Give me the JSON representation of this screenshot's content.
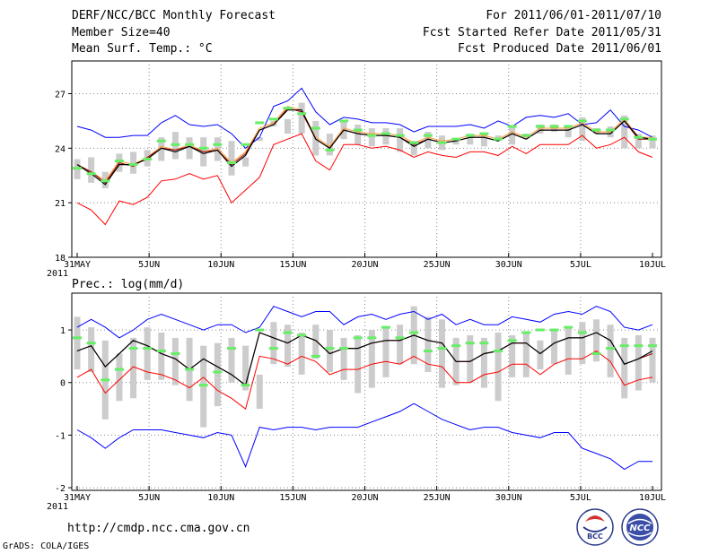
{
  "header": {
    "title": "DERF/NCC/BCC Monthly Forecast",
    "member_size": "Member Size=40",
    "variable": "Mean Surf. Temp.: °C",
    "period": "For 2011/06/01-2011/07/10",
    "refer_date": "Fcst Started Refer Date 2011/05/31",
    "produced_date": "Fcst Produced Date 2011/06/01"
  },
  "footer": {
    "url": "http://cmdp.ncc.cma.gov.cn",
    "grads": "GrADS: COLA/IGES",
    "logo_left_text": "BCC",
    "logo_right_text": "NCC"
  },
  "colors": {
    "upper": "#0000ff",
    "lower": "#ff0000",
    "mean": "#000000",
    "box": "#cccccc",
    "obs": "#66ee66",
    "grid": "#888888"
  },
  "chart_data": [
    {
      "type": "line",
      "title": "",
      "ylabel": "Mean Surf. Temp.: °C",
      "ylim": [
        18,
        28.8
      ],
      "yticks": [
        18,
        21,
        24,
        27
      ],
      "x_days": 40,
      "x_tick_days": [
        0,
        5,
        10,
        15,
        20,
        25,
        30,
        35,
        40
      ],
      "x_tick_labels": [
        "31MAY",
        "5JUN",
        "10JUN",
        "15JUN",
        "20JUN",
        "25JUN",
        "30JUN",
        "5JUL",
        "10JUL"
      ],
      "x_start_year": "2011",
      "series": [
        {
          "name": "upper",
          "values": [
            25.2,
            25.0,
            24.6,
            24.6,
            24.7,
            24.7,
            25.4,
            25.8,
            25.3,
            25.2,
            25.3,
            24.8,
            24.0,
            24.6,
            26.3,
            26.6,
            27.3,
            26.0,
            25.3,
            25.7,
            25.6,
            25.4,
            25.4,
            25.3,
            24.9,
            25.2,
            25.2,
            25.2,
            25.3,
            25.1,
            25.5,
            25.2,
            25.7,
            25.8,
            25.7,
            25.9,
            25.3,
            25.4,
            26.1,
            25.2,
            25.0,
            24.6
          ]
        },
        {
          "name": "box_top",
          "values": [
            23.4,
            23.5,
            22.7,
            23.7,
            23.8,
            23.9,
            24.6,
            24.9,
            24.6,
            24.6,
            24.6,
            24.4,
            23.5,
            24.6,
            25.5,
            25.6,
            26.5,
            25.5,
            24.8,
            25.5,
            25.3,
            25.1,
            25.1,
            25.1,
            24.4,
            24.9,
            24.7,
            24.5,
            24.8,
            24.8,
            24.7,
            25.2,
            24.8,
            25.3,
            25.3,
            25.2,
            25.7,
            25.1,
            25.2,
            25.8,
            24.8,
            24.7
          ]
        },
        {
          "name": "box_bottom",
          "values": [
            22.3,
            22.1,
            21.8,
            22.7,
            22.6,
            23.0,
            23.3,
            23.4,
            23.4,
            23.0,
            23.3,
            22.5,
            23.0,
            24.4,
            25.2,
            24.8,
            24.8,
            23.6,
            23.6,
            24.5,
            24.2,
            24.1,
            24.2,
            23.8,
            23.6,
            24.0,
            23.9,
            24.2,
            24.2,
            24.1,
            24.5,
            24.2,
            24.6,
            24.8,
            24.9,
            24.6,
            24.4,
            24.8,
            24.6,
            24.0,
            24.0,
            24.0
          ]
        },
        {
          "name": "mean_black",
          "values": [
            23.1,
            22.6,
            22.0,
            23.1,
            23.1,
            23.4,
            24.0,
            23.8,
            24.1,
            23.7,
            23.9,
            23.0,
            23.6,
            25.0,
            25.3,
            26.1,
            26.1,
            24.5,
            24.0,
            25.0,
            24.8,
            24.7,
            24.7,
            24.6,
            24.1,
            24.5,
            24.3,
            24.4,
            24.6,
            24.6,
            24.4,
            24.8,
            24.5,
            25.0,
            25.0,
            25.0,
            25.3,
            24.8,
            24.8,
            25.5,
            24.6,
            24.5
          ]
        },
        {
          "name": "mean_darkred",
          "values": [
            23.1,
            22.7,
            22.1,
            23.2,
            23.0,
            23.5,
            24.0,
            23.9,
            24.1,
            23.8,
            23.9,
            23.1,
            23.7,
            25.0,
            25.3,
            26.2,
            26.0,
            24.5,
            24.0,
            25.0,
            24.8,
            24.7,
            24.7,
            24.6,
            24.2,
            24.5,
            24.3,
            24.4,
            24.6,
            24.6,
            24.4,
            24.8,
            24.5,
            25.0,
            25.0,
            25.0,
            25.3,
            24.8,
            24.8,
            25.5,
            24.5,
            24.5
          ]
        },
        {
          "name": "lower",
          "values": [
            21.0,
            20.6,
            19.8,
            21.1,
            20.9,
            21.3,
            22.2,
            22.3,
            22.6,
            22.3,
            22.5,
            21.0,
            21.7,
            22.4,
            24.2,
            24.5,
            24.8,
            23.3,
            22.8,
            24.2,
            24.2,
            24.0,
            24.1,
            23.9,
            23.5,
            23.8,
            23.6,
            23.5,
            23.8,
            23.8,
            23.6,
            24.1,
            23.7,
            24.2,
            24.2,
            24.2,
            24.7,
            24.0,
            24.2,
            24.6,
            23.8,
            23.5
          ]
        },
        {
          "name": "mean_orange_outline",
          "values": [
            23.1,
            22.7,
            22.2,
            23.3,
            23.1,
            23.5,
            24.1,
            23.9,
            24.2,
            23.8,
            24.0,
            23.2,
            23.8,
            25.1,
            25.4,
            26.3,
            26.1,
            24.6,
            24.1,
            25.1,
            24.9,
            24.8,
            24.8,
            24.7,
            24.3,
            24.6,
            24.4,
            24.5,
            24.7,
            24.7,
            24.5,
            24.9,
            24.6,
            25.1,
            25.1,
            25.1,
            25.4,
            24.9,
            24.9,
            25.6,
            24.6,
            24.6
          ]
        },
        {
          "name": "obs_green",
          "values": [
            22.9,
            22.6,
            22.2,
            23.3,
            23.1,
            23.4,
            24.4,
            24.2,
            24.2,
            24.0,
            24.2,
            23.2,
            24.2,
            25.4,
            25.6,
            26.2,
            25.9,
            25.1,
            23.9,
            25.5,
            25.0,
            24.7,
            24.8,
            24.7,
            24.3,
            24.7,
            24.3,
            24.5,
            24.7,
            24.8,
            24.5,
            25.2,
            24.7,
            25.2,
            25.2,
            25.2,
            25.5,
            25.0,
            25.0,
            25.6,
            24.6,
            24.5
          ]
        }
      ]
    },
    {
      "type": "line",
      "title": "Prec.: log(mm/d)",
      "ylim": [
        -2.05,
        1.7
      ],
      "yticks": [
        -2,
        -1,
        0,
        1
      ],
      "x_days": 40,
      "x_tick_days": [
        0,
        5,
        10,
        15,
        20,
        25,
        30,
        35,
        40
      ],
      "x_tick_labels": [
        "31MAY",
        "5JUN",
        "10JUN",
        "15JUN",
        "20JUN",
        "25JUN",
        "30JUN",
        "5JUL",
        "10JUL"
      ],
      "x_start_year": "2011",
      "series": [
        {
          "name": "upper",
          "values": [
            1.05,
            1.2,
            1.05,
            0.85,
            1.0,
            1.2,
            1.3,
            1.2,
            1.1,
            1.0,
            1.1,
            1.1,
            0.95,
            1.05,
            1.45,
            1.35,
            1.25,
            1.35,
            1.35,
            1.1,
            1.25,
            1.3,
            1.2,
            1.3,
            1.35,
            1.2,
            1.3,
            1.1,
            1.2,
            1.1,
            1.1,
            1.25,
            1.2,
            1.15,
            1.3,
            1.35,
            1.3,
            1.45,
            1.35,
            1.05,
            1.0,
            1.1
          ]
        },
        {
          "name": "box_top",
          "values": [
            1.25,
            1.05,
            0.8,
            0.55,
            0.85,
            1.05,
            0.95,
            0.85,
            0.85,
            0.7,
            0.75,
            0.85,
            0.7,
            0.15,
            1.15,
            1.1,
            0.95,
            1.1,
            1.0,
            0.85,
            0.9,
            1.0,
            1.05,
            1.1,
            1.45,
            1.25,
            1.2,
            0.85,
            0.9,
            0.85,
            0.95,
            0.9,
            0.95,
            0.8,
            1.0,
            1.05,
            1.15,
            1.2,
            1.1,
            0.85,
            0.9,
            0.85
          ]
        },
        {
          "name": "box_bottom",
          "values": [
            0.25,
            0.2,
            -0.7,
            -0.35,
            -0.3,
            0.05,
            0.05,
            -0.05,
            -0.35,
            -0.85,
            -0.45,
            0.0,
            -0.15,
            -0.5,
            0.35,
            0.3,
            0.15,
            0.45,
            0.2,
            0.05,
            -0.2,
            -0.1,
            0.1,
            0.35,
            0.35,
            0.2,
            -0.1,
            -0.05,
            0.0,
            -0.1,
            -0.35,
            0.1,
            0.1,
            0.25,
            0.35,
            0.15,
            0.35,
            0.4,
            0.1,
            -0.3,
            -0.15,
            0.0
          ]
        },
        {
          "name": "mean_black",
          "values": [
            0.6,
            0.7,
            0.3,
            0.55,
            0.8,
            0.7,
            0.55,
            0.45,
            0.25,
            0.45,
            0.3,
            0.15,
            -0.05,
            0.95,
            0.85,
            0.75,
            0.9,
            0.8,
            0.55,
            0.65,
            0.65,
            0.75,
            0.8,
            0.8,
            0.9,
            0.8,
            0.75,
            0.4,
            0.4,
            0.55,
            0.6,
            0.75,
            0.75,
            0.55,
            0.75,
            0.85,
            0.85,
            0.95,
            0.8,
            0.35,
            0.45,
            0.6
          ]
        },
        {
          "name": "mean_darkred",
          "values": [
            0.6,
            0.7,
            0.3,
            0.55,
            0.8,
            0.7,
            0.55,
            0.45,
            0.25,
            0.45,
            0.3,
            0.15,
            -0.05,
            0.95,
            0.85,
            0.75,
            0.9,
            0.8,
            0.55,
            0.65,
            0.65,
            0.75,
            0.8,
            0.8,
            0.9,
            0.8,
            0.75,
            0.4,
            0.4,
            0.55,
            0.6,
            0.75,
            0.75,
            0.55,
            0.75,
            0.85,
            0.85,
            0.95,
            0.8,
            0.35,
            0.45,
            0.55
          ]
        },
        {
          "name": "lower",
          "values": [
            0.1,
            0.25,
            -0.2,
            0.05,
            0.3,
            0.2,
            0.15,
            0.05,
            -0.1,
            0.1,
            -0.15,
            -0.3,
            -0.5,
            0.5,
            0.45,
            0.35,
            0.5,
            0.4,
            0.15,
            0.25,
            0.25,
            0.35,
            0.4,
            0.35,
            0.5,
            0.35,
            0.3,
            0.0,
            0.0,
            0.15,
            0.2,
            0.35,
            0.35,
            0.15,
            0.35,
            0.45,
            0.45,
            0.6,
            0.4,
            -0.05,
            0.05,
            0.1
          ]
        },
        {
          "name": "lower_blue",
          "values": [
            -0.9,
            -1.05,
            -1.25,
            -1.05,
            -0.9,
            -0.9,
            -0.9,
            -0.95,
            -1.0,
            -1.05,
            -0.95,
            -1.0,
            -1.6,
            -0.85,
            -0.9,
            -0.85,
            -0.85,
            -0.9,
            -0.85,
            -0.85,
            -0.85,
            -0.75,
            -0.65,
            -0.55,
            -0.4,
            -0.55,
            -0.7,
            -0.8,
            -0.9,
            -0.85,
            -0.85,
            -0.95,
            -1.0,
            -1.05,
            -0.95,
            -0.95,
            -1.25,
            -1.35,
            -1.45,
            -1.65,
            -1.5,
            -1.5
          ]
        },
        {
          "name": "obs_green",
          "values": [
            0.85,
            0.75,
            0.05,
            0.25,
            0.65,
            0.65,
            0.6,
            0.55,
            0.25,
            -0.05,
            0.2,
            0.65,
            -0.05,
            1.0,
            0.65,
            0.95,
            0.9,
            0.5,
            0.65,
            0.65,
            0.85,
            0.85,
            1.05,
            0.85,
            0.95,
            0.6,
            0.65,
            0.7,
            0.75,
            0.75,
            0.6,
            0.8,
            0.95,
            1.0,
            1.0,
            1.05,
            0.95,
            0.55,
            0.65,
            0.7,
            0.7,
            0.7
          ]
        }
      ]
    }
  ]
}
